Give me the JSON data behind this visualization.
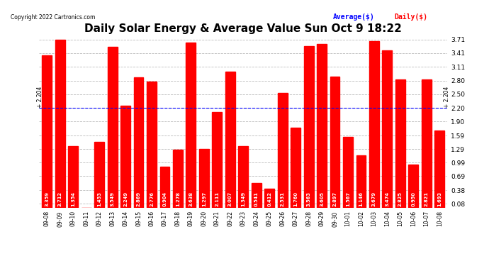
{
  "title": "Daily Solar Energy & Average Value Sun Oct 9 18:22",
  "copyright": "Copyright 2022 Cartronics.com",
  "legend_avg": "Average($)",
  "legend_daily": "Daily($)",
  "average_value": 2.204,
  "average_label_left": "+ 2.204",
  "average_label_right": "+ 2.204",
  "bar_color": "#ff0000",
  "avg_line_color": "#0000ff",
  "categories": [
    "09-08",
    "09-09",
    "09-10",
    "09-11",
    "09-12",
    "09-13",
    "09-14",
    "09-15",
    "09-16",
    "09-17",
    "09-18",
    "09-19",
    "09-20",
    "09-21",
    "09-22",
    "09-23",
    "09-24",
    "09-25",
    "09-26",
    "09-27",
    "09-28",
    "09-29",
    "09-30",
    "10-01",
    "10-02",
    "10-03",
    "10-04",
    "10-05",
    "10-06",
    "10-07",
    "10-08"
  ],
  "values": [
    3.359,
    3.712,
    1.354,
    0.0,
    1.453,
    3.549,
    2.249,
    2.869,
    2.776,
    0.904,
    1.278,
    3.638,
    1.297,
    2.111,
    3.007,
    1.349,
    0.541,
    0.412,
    2.531,
    1.76,
    3.563,
    3.605,
    2.897,
    1.567,
    1.146,
    3.679,
    3.474,
    2.825,
    0.95,
    2.821,
    1.693
  ],
  "ylim": [
    0,
    3.82
  ],
  "yticks": [
    0.08,
    0.38,
    0.69,
    0.99,
    1.29,
    1.59,
    1.9,
    2.2,
    2.5,
    2.8,
    3.11,
    3.41,
    3.71
  ],
  "background_color": "#ffffff",
  "grid_color": "#bbbbbb",
  "title_fontsize": 11,
  "fig_width": 6.9,
  "fig_height": 3.75
}
